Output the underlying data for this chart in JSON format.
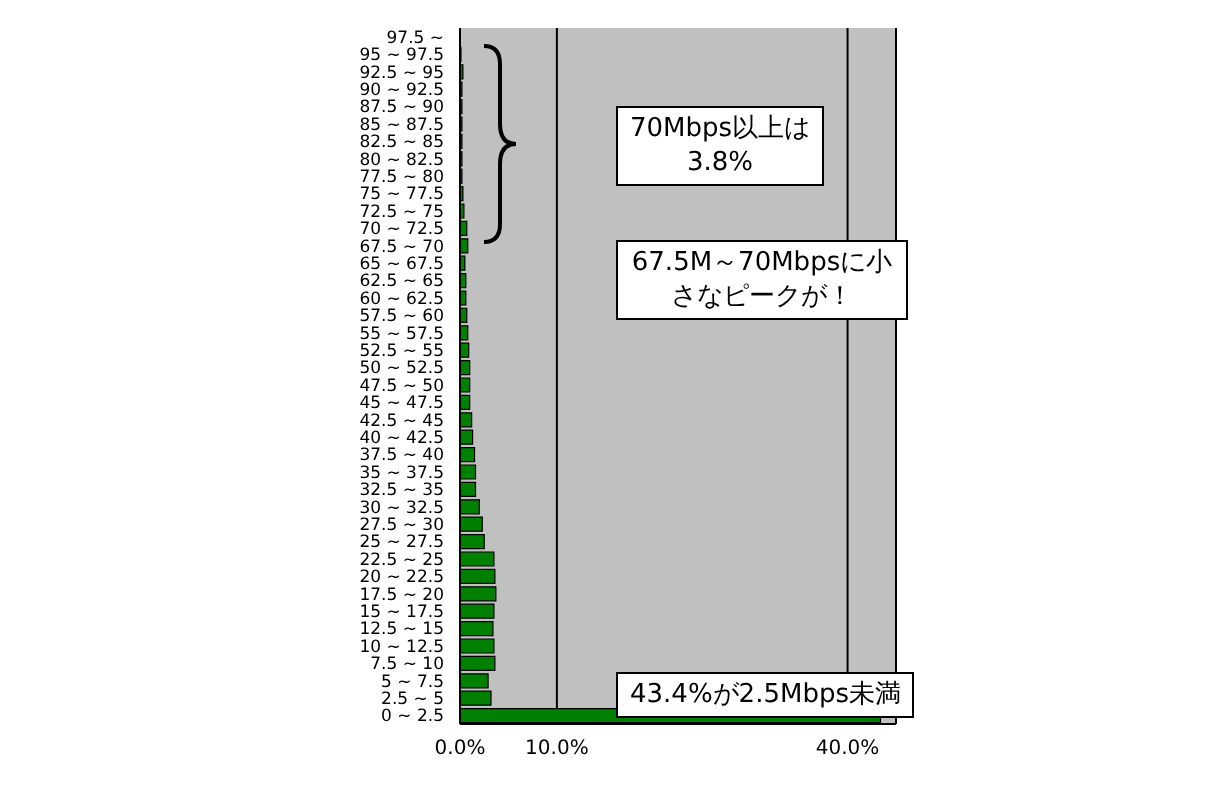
{
  "chart_data": {
    "type": "bar",
    "orientation": "horizontal",
    "categories": [
      "97.5 ~",
      "95 ~ 97.5",
      "92.5 ~ 95",
      "90 ~ 92.5",
      "87.5 ~ 90",
      "85 ~ 87.5",
      "82.5 ~ 85",
      "80 ~ 82.5",
      "77.5 ~ 80",
      "75 ~ 77.5",
      "72.5 ~ 75",
      "70 ~ 72.5",
      "67.5 ~ 70",
      "65 ~ 67.5",
      "62.5 ~ 65",
      "60 ~ 62.5",
      "57.5 ~ 60",
      "55 ~ 57.5",
      "52.5 ~ 55",
      "50 ~ 52.5",
      "47.5 ~ 50",
      "45 ~ 47.5",
      "42.5 ~ 45",
      "40 ~ 42.5",
      "37.5 ~ 40",
      "35 ~ 37.5",
      "32.5 ~ 35",
      "30 ~ 32.5",
      "27.5 ~ 30",
      "25 ~ 27.5",
      "22.5 ~ 25",
      "20 ~ 22.5",
      "17.5 ~ 20",
      "15 ~ 17.5",
      "12.5 ~ 15",
      "10 ~ 12.5",
      "7.5 ~ 10",
      "5 ~ 7.5",
      "2.5 ~ 5",
      "0 ~ 2.5"
    ],
    "values": [
      0,
      0.1,
      0.3,
      0.2,
      0.2,
      0.2,
      0.2,
      0.2,
      0.2,
      0.3,
      0.4,
      0.7,
      0.8,
      0.5,
      0.6,
      0.6,
      0.7,
      0.8,
      0.9,
      1.0,
      1.0,
      1.0,
      1.2,
      1.3,
      1.5,
      1.6,
      1.6,
      2.0,
      2.3,
      2.5,
      3.5,
      3.6,
      3.7,
      3.5,
      3.4,
      3.5,
      3.6,
      2.9,
      3.2,
      43.4
    ],
    "color": "#008000",
    "xlim": [
      0,
      45
    ],
    "xticks": [
      {
        "value": 0,
        "label": "0.0%"
      },
      {
        "value": 10,
        "label": "10.0%"
      },
      {
        "value": 40,
        "label": "40.0%"
      }
    ],
    "grid": "x",
    "annotations": [
      "70Mbps以上は\n3.8%",
      "67.5M～70Mbpsに小さなピークが！",
      "43.4%が2.5Mbps未満"
    ]
  }
}
